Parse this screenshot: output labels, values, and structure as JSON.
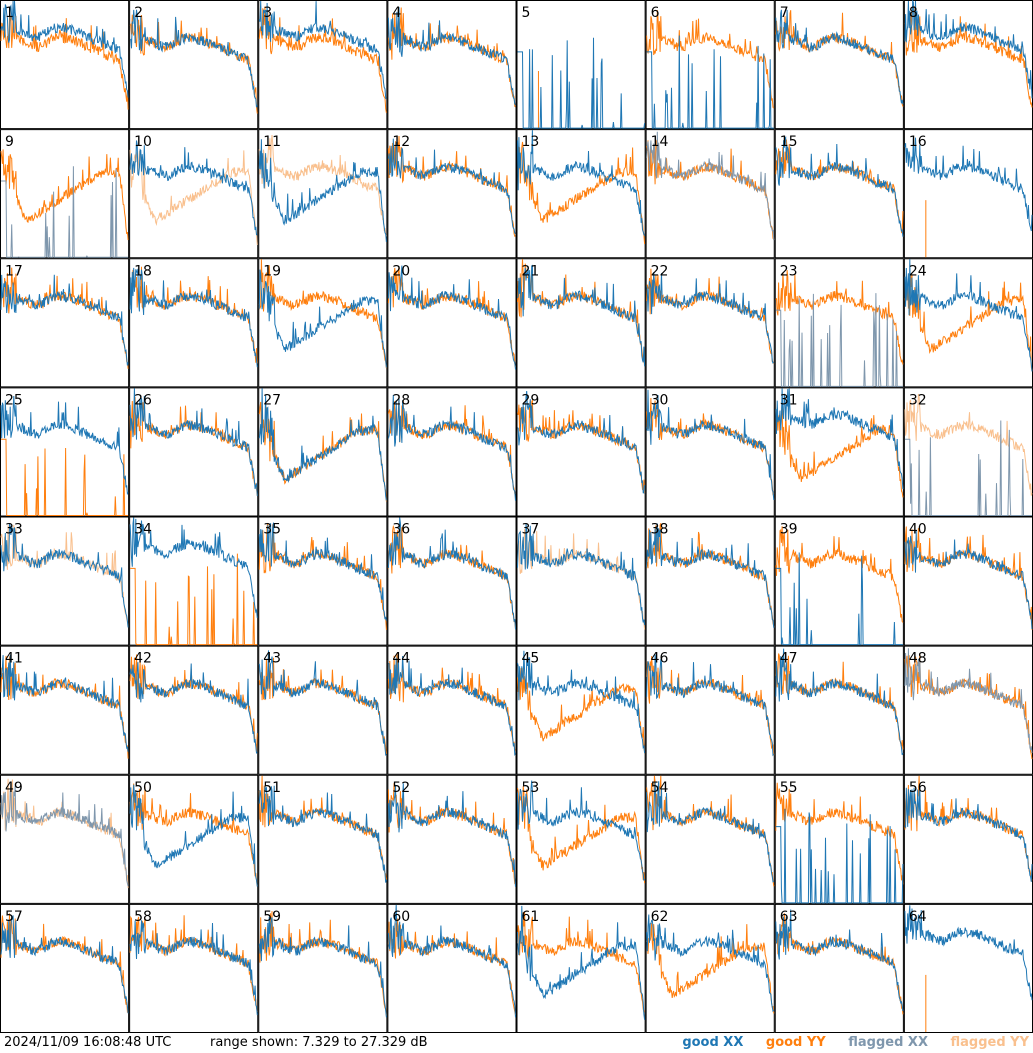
{
  "chart_data": {
    "type": "line",
    "layout": "small-multiples-8x8",
    "panel_labels": [
      "1",
      "2",
      "3",
      "4",
      "5",
      "6",
      "7",
      "8",
      "9",
      "10",
      "11",
      "12",
      "13",
      "14",
      "15",
      "16",
      "17",
      "18",
      "19",
      "20",
      "21",
      "22",
      "23",
      "24",
      "25",
      "26",
      "27",
      "28",
      "29",
      "30",
      "31",
      "32",
      "33",
      "34",
      "35",
      "36",
      "37",
      "38",
      "39",
      "40",
      "41",
      "42",
      "43",
      "44",
      "45",
      "46",
      "47",
      "48",
      "49",
      "50",
      "51",
      "52",
      "53",
      "54",
      "55",
      "56",
      "57",
      "58",
      "59",
      "60",
      "61",
      "62",
      "63",
      "64"
    ],
    "ylim": [
      7.329,
      27.329
    ],
    "yunit": "dB",
    "series_legend": [
      "good XX",
      "good YY",
      "flagged XX",
      "flagged YY"
    ],
    "colors": {
      "good_xx": "#1f77b4",
      "good_yy": "#ff7f0e",
      "flagged_xx": "#7f97ad",
      "flagged_yy": "#f9c08e"
    },
    "panel_states": {
      "flagged_xx": [
        9,
        14,
        23,
        32,
        48,
        49
      ],
      "flagged_yy": [
        10,
        11,
        32,
        33,
        37,
        49
      ],
      "missing_yy": [
        5,
        16,
        64
      ],
      "dropout_xx": [
        5,
        6,
        9,
        23,
        32,
        39,
        55
      ],
      "dropout_yy": [
        16,
        25,
        34,
        64
      ],
      "low_xx": [
        6,
        11,
        19,
        27,
        50,
        61
      ],
      "low_yy": [
        9,
        10,
        13,
        24,
        31,
        45,
        53,
        62,
        27
      ],
      "high_xx": [
        1,
        3,
        5,
        8,
        23,
        31,
        34,
        55,
        64
      ]
    }
  },
  "footer": {
    "timestamp": "2024/11/09 16:08:48 UTC",
    "range_text": "range shown: 7.329 to 27.329 dB",
    "legend": {
      "good_xx": "good XX",
      "good_yy": "good YY",
      "flagged_xx": "flagged XX",
      "flagged_yy": "flagged YY"
    }
  }
}
